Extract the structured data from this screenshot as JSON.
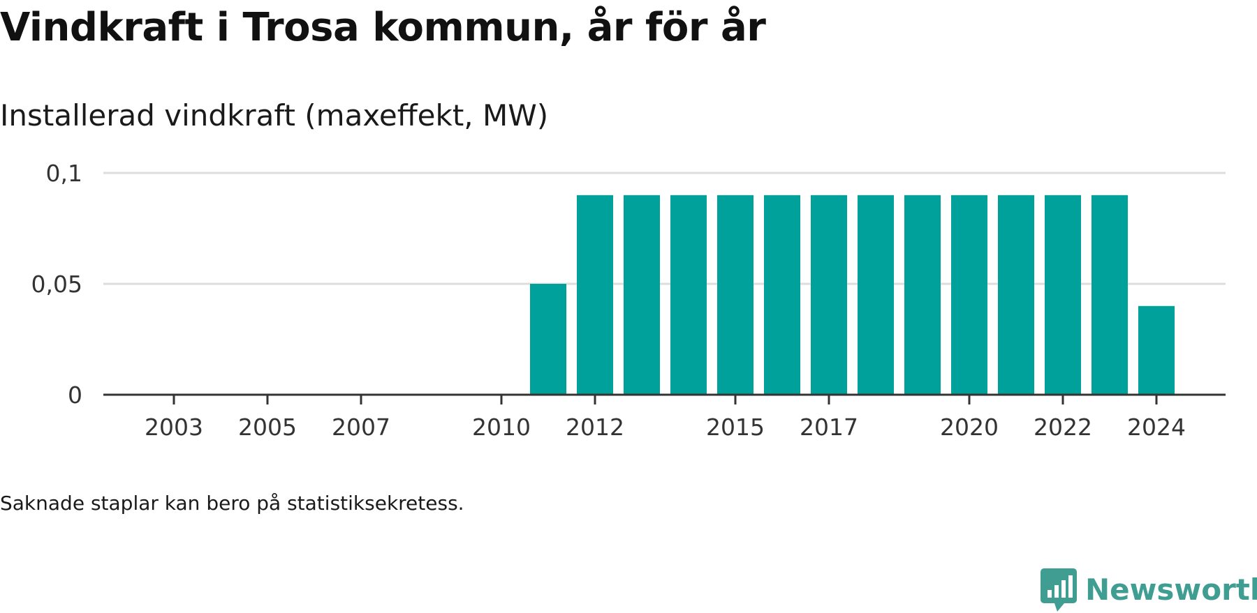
{
  "title": "Vindkraft i Trosa kommun, år för år",
  "subtitle": "Installerad vindkraft (maxeffekt, MW)",
  "note": "Saknade staplar kan bero på statistiksekretess.",
  "brand": {
    "name": "Newsworthy",
    "icon": "newsworthy-logo-icon",
    "color": "#3f9d92"
  },
  "colors": {
    "bar": "#00a19a",
    "grid": "#dddddd",
    "axis": "#333333",
    "text": "#333333"
  },
  "chart_data": {
    "type": "bar",
    "x": [
      2002,
      2003,
      2004,
      2005,
      2006,
      2007,
      2008,
      2009,
      2010,
      2011,
      2012,
      2013,
      2014,
      2015,
      2016,
      2017,
      2018,
      2019,
      2020,
      2021,
      2022,
      2023,
      2024
    ],
    "values": [
      0,
      0,
      0,
      0,
      0,
      0,
      0,
      0,
      0,
      0.05,
      0.09,
      0.09,
      0.09,
      0.09,
      0.09,
      0.09,
      0.09,
      0.09,
      0.09,
      0.09,
      0.09,
      0.09,
      0.04
    ],
    "x_ticks": [
      2003,
      2005,
      2007,
      2010,
      2012,
      2015,
      2017,
      2020,
      2022,
      2024
    ],
    "x_tick_labels": [
      "2003",
      "2005",
      "2007",
      "2010",
      "2012",
      "2015",
      "2017",
      "2020",
      "2022",
      "2024"
    ],
    "y_ticks": [
      0,
      0.05,
      0.1
    ],
    "y_tick_labels": [
      "0",
      "0,05",
      "0,1"
    ],
    "ylim": [
      0,
      0.1
    ],
    "title": "Vindkraft i Trosa kommun, år för år",
    "ylabel": "Installerad vindkraft (maxeffekt, MW)",
    "xlabel": "",
    "grid": true,
    "legend": "none"
  }
}
